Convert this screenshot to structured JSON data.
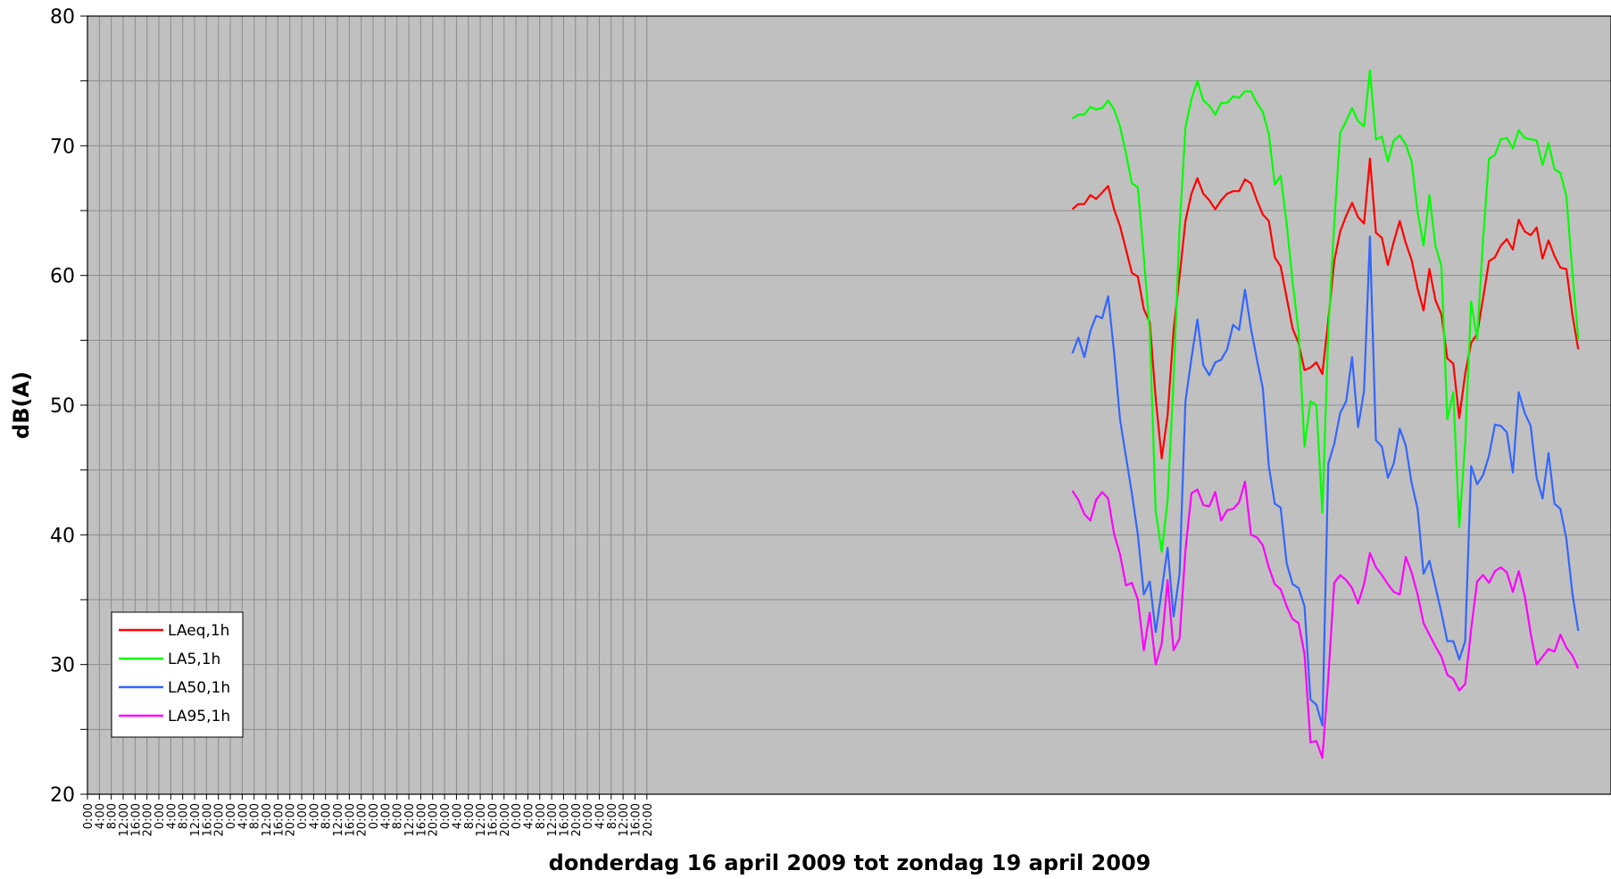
{
  "chart_data": {
    "type": "line",
    "title": "",
    "xlabel": "donderdag  16 april  2009  tot zondag 19 april 2009",
    "ylabel": "dB(A)",
    "ylim": [
      20,
      80
    ],
    "yticks": [
      20,
      30,
      40,
      50,
      60,
      70,
      80
    ],
    "grid": true,
    "legend_position": "bottom-left",
    "background": "#c0c0c0",
    "x_unit": "hour",
    "x_tick_step_hours": 4,
    "x_range_hours": [
      0,
      512
    ],
    "x_tick_labels": [
      "0:00",
      "4:00",
      "8:00",
      "12:00",
      "16:00",
      "20:00",
      "0:00",
      "4:00",
      "8:00",
      "12:00",
      "16:00",
      "20:00",
      "0:00",
      "4:00",
      "8:00",
      "12:00",
      "16:00",
      "20:00",
      "0:00",
      "4:00",
      "8:00",
      "12:00",
      "16:00",
      "20:00",
      "0:00",
      "4:00",
      "8:00",
      "12:00",
      "16:00",
      "20:00",
      "0:00",
      "4:00",
      "8:00",
      "12:00",
      "16:00",
      "20:00",
      "0:00",
      "4:00",
      "8:00",
      "12:00",
      "16:00",
      "20:00",
      "0:00",
      "4:00",
      "8:00",
      "12:00",
      "16:00",
      "20:00"
    ],
    "series_start_hour": 331,
    "series": [
      {
        "name": "LAeq,1h",
        "color": "#ff0000",
        "values": [
          65.1,
          65.5,
          65.5,
          66.2,
          65.9,
          66.4,
          66.9,
          65.1,
          63.8,
          62.0,
          60.2,
          59.9,
          57.4,
          56.4,
          50.5,
          45.9,
          49.2,
          55.8,
          59.9,
          64.2,
          66.3,
          67.5,
          66.3,
          65.8,
          65.1,
          65.8,
          66.3,
          66.5,
          66.5,
          67.4,
          67.1,
          65.8,
          64.7,
          64.2,
          61.4,
          60.7,
          58.3,
          55.9,
          54.8,
          52.7,
          52.9,
          53.3,
          52.4,
          56.6,
          61.1,
          63.4,
          64.6,
          65.6,
          64.5,
          64.0,
          69.0,
          63.3,
          62.9,
          60.8,
          62.6,
          64.2,
          62.5,
          61.2,
          59.0,
          57.3,
          60.5,
          58.1,
          57.0,
          53.6,
          53.2,
          49.0,
          52.4,
          54.8,
          55.5,
          58.2,
          61.1,
          61.4,
          62.3,
          62.8,
          62.0,
          64.3,
          63.4,
          63.1,
          63.7,
          61.3,
          62.7,
          61.5,
          60.6,
          60.5,
          57.0,
          54.3
        ]
      },
      {
        "name": "LA5,1h",
        "color": "#00ff00",
        "values": [
          72.1,
          72.4,
          72.4,
          73.0,
          72.8,
          72.9,
          73.5,
          72.8,
          71.5,
          69.4,
          67.1,
          66.8,
          61.4,
          55.7,
          41.8,
          38.7,
          42.6,
          51.9,
          63.6,
          71.4,
          73.6,
          75.0,
          73.5,
          73.1,
          72.4,
          73.3,
          73.3,
          73.8,
          73.7,
          74.2,
          74.2,
          73.3,
          72.6,
          70.9,
          67.0,
          67.7,
          64.0,
          59.5,
          55.7,
          46.8,
          50.3,
          50.0,
          41.7,
          55.7,
          64.0,
          71.0,
          71.9,
          72.9,
          71.9,
          71.5,
          75.8,
          70.5,
          70.7,
          68.8,
          70.4,
          70.8,
          70.1,
          68.8,
          64.9,
          62.3,
          66.2,
          62.3,
          60.7,
          48.9,
          51.0,
          40.6,
          47.1,
          58.0,
          55.1,
          62.7,
          69.0,
          69.3,
          70.5,
          70.6,
          69.8,
          71.2,
          70.6,
          70.5,
          70.4,
          68.5,
          70.2,
          68.2,
          67.9,
          66.1,
          60.3,
          55.1
        ]
      },
      {
        "name": "LA50,1h",
        "color": "#3366ff",
        "values": [
          54.0,
          55.2,
          53.7,
          55.7,
          56.9,
          56.7,
          58.4,
          54.1,
          48.9,
          46.0,
          43.2,
          40.0,
          35.4,
          36.4,
          32.5,
          35.7,
          39.0,
          33.7,
          37.0,
          50.3,
          53.6,
          56.6,
          53.1,
          52.3,
          53.3,
          53.5,
          54.3,
          56.2,
          55.8,
          58.9,
          55.9,
          53.5,
          51.3,
          45.3,
          42.4,
          42.1,
          37.8,
          36.2,
          35.9,
          34.5,
          27.3,
          26.9,
          25.3,
          45.5,
          47.0,
          49.4,
          50.3,
          53.7,
          48.3,
          51.1,
          63.0,
          47.3,
          46.8,
          44.4,
          45.5,
          48.2,
          46.9,
          44.0,
          42.0,
          37.0,
          38.0,
          36.0,
          34.0,
          31.8,
          31.8,
          30.4,
          31.8,
          45.3,
          43.9,
          44.6,
          46.1,
          48.5,
          48.4,
          47.9,
          44.8,
          51.0,
          49.4,
          48.4,
          44.4,
          42.8,
          46.3,
          42.4,
          42.0,
          39.7,
          35.5,
          32.6
        ]
      },
      {
        "name": "LA95,1h",
        "color": "#ff00ff",
        "values": [
          43.4,
          42.7,
          41.6,
          41.1,
          42.7,
          43.3,
          42.8,
          40.1,
          38.5,
          36.1,
          36.3,
          35.0,
          31.1,
          34.0,
          30.0,
          31.6,
          36.5,
          31.1,
          32.0,
          38.8,
          43.2,
          43.5,
          42.3,
          42.2,
          43.3,
          41.1,
          41.9,
          42.0,
          42.5,
          44.1,
          40.0,
          39.8,
          39.2,
          37.5,
          36.2,
          35.8,
          34.5,
          33.5,
          33.2,
          30.8,
          24.0,
          24.1,
          22.8,
          29.0,
          36.3,
          36.9,
          36.5,
          35.9,
          34.7,
          36.2,
          38.6,
          37.5,
          36.9,
          36.2,
          35.6,
          35.4,
          38.3,
          37.1,
          35.4,
          33.2,
          32.3,
          31.4,
          30.6,
          29.2,
          28.9,
          28.0,
          28.5,
          32.7,
          36.4,
          36.9,
          36.3,
          37.2,
          37.5,
          37.1,
          35.6,
          37.2,
          35.3,
          32.4,
          30.0,
          30.6,
          31.2,
          31.0,
          32.3,
          31.3,
          30.7,
          29.7
        ]
      }
    ]
  }
}
